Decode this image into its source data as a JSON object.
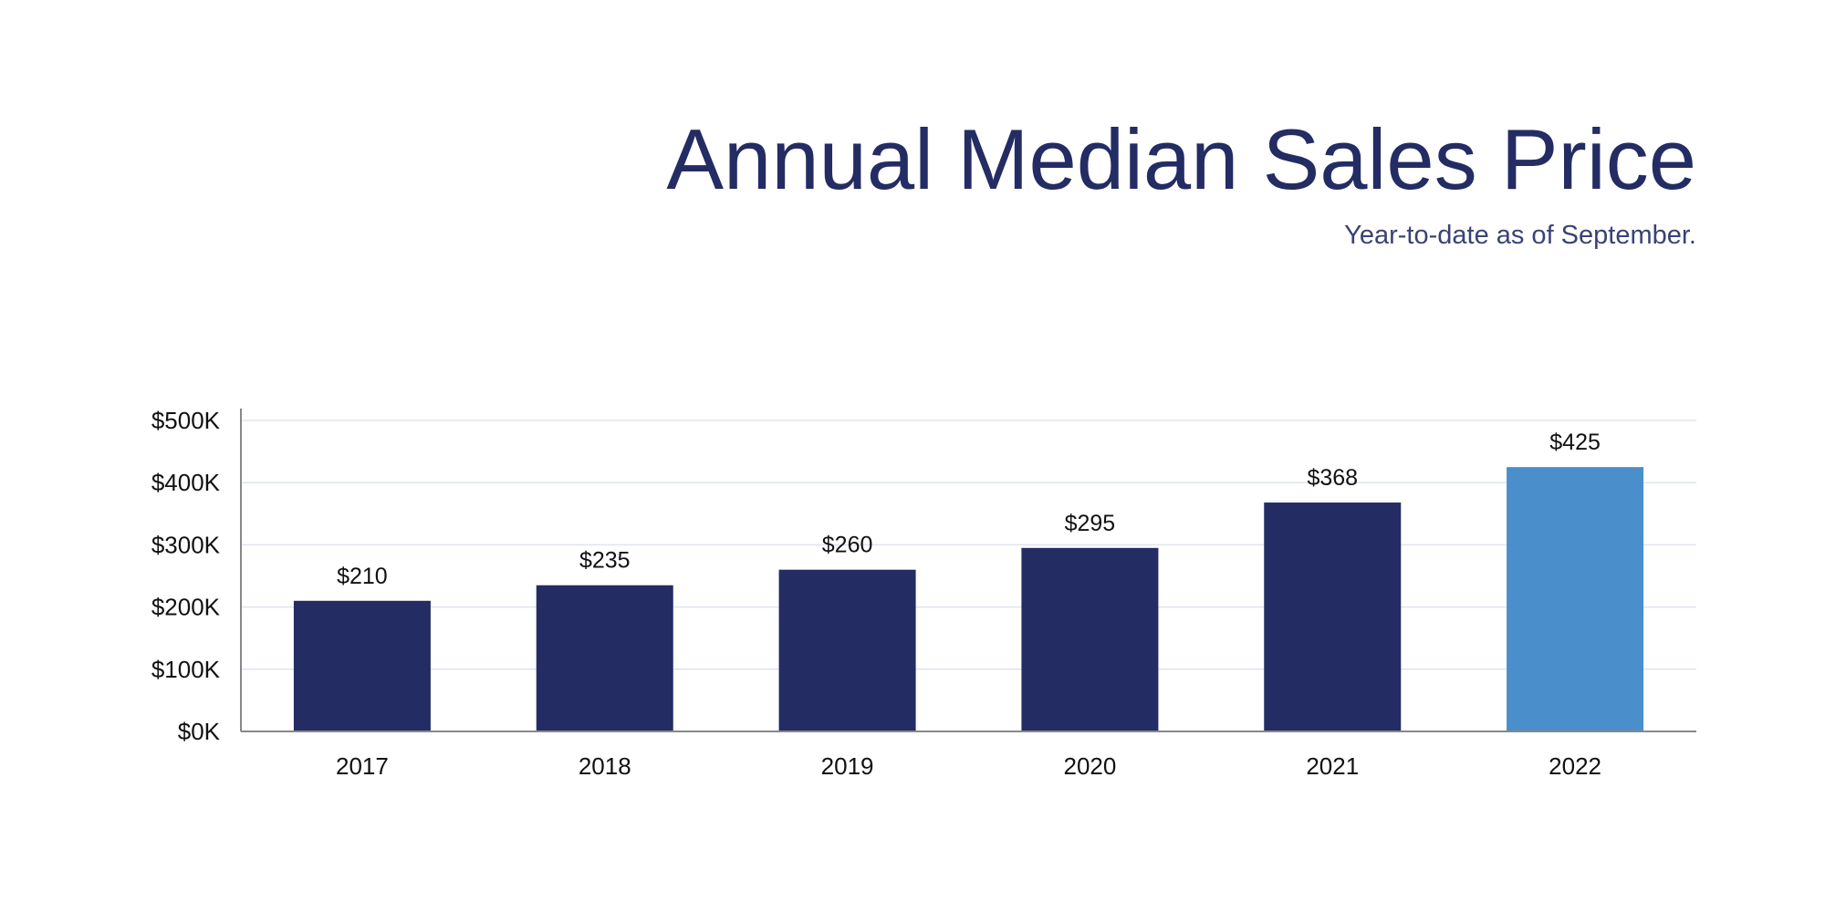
{
  "chart_data": {
    "type": "bar",
    "title": "Annual Median Sales Price",
    "subtitle": "Year-to-date as of September.",
    "categories": [
      "2017",
      "2018",
      "2019",
      "2020",
      "2021",
      "2022"
    ],
    "values": [
      210,
      235,
      260,
      295,
      368,
      425
    ],
    "data_labels": [
      "$210",
      "$235",
      "$260",
      "$295",
      "$368",
      "$425"
    ],
    "unit": "thousands USD",
    "ylim": [
      0,
      500
    ],
    "yticks": [
      0,
      100,
      200,
      300,
      400,
      500
    ],
    "ytick_labels": [
      "$0K",
      "$100K",
      "$200K",
      "$300K",
      "$400K",
      "$500K"
    ],
    "grid": true,
    "legend": "none",
    "colors": {
      "bar": "#232c63",
      "highlight": "#4a8fcb",
      "grid": "#dde4ef",
      "axis": "#888888"
    },
    "highlight_index": 5
  }
}
